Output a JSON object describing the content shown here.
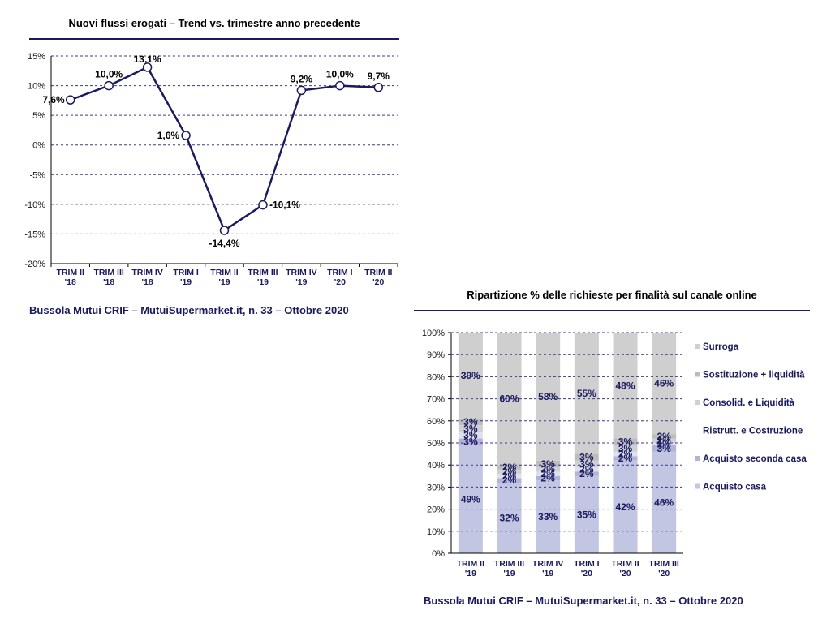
{
  "colors": {
    "navy": "#1a1a5e",
    "grid": "#3a3a8a",
    "acquisto_casa": "#c2c6e2",
    "acquisto_seconda_casa": "#b0b4d8",
    "ristrutt": "#dfe0ec",
    "consolid": "#cfd0d6",
    "sostituzione": "#bdbdbd",
    "surroga": "#cfcfcf"
  },
  "chart_data": [
    {
      "type": "line",
      "title": "Nuovi flussi erogati – Trend vs. trimestre anno precedente",
      "source": "Bussola Mutui CRIF – MutuiSupermarket.it, n. 33 – Ottobre 2020",
      "categories": [
        [
          "TRIM II",
          "'18"
        ],
        [
          "TRIM III",
          "'18"
        ],
        [
          "TRIM IV",
          "'18"
        ],
        [
          "TRIM I",
          "'19"
        ],
        [
          "TRIM II",
          "'19"
        ],
        [
          "TRIM III",
          "'19"
        ],
        [
          "TRIM IV",
          "'19"
        ],
        [
          "TRIM I",
          "'20"
        ],
        [
          "TRIM II",
          "'20"
        ]
      ],
      "values": [
        7.6,
        10.0,
        13.1,
        1.6,
        -14.4,
        -10.1,
        9.2,
        10.0,
        9.7
      ],
      "data_labels": [
        "7,6%",
        "10,0%",
        "13,1%",
        "1,6%",
        "-14,4%",
        "-10,1%",
        "9,2%",
        "10,0%",
        "9,7%"
      ],
      "yticks": [
        15,
        10,
        5,
        0,
        -5,
        -10,
        -15,
        -20
      ],
      "ytick_labels": [
        "15%",
        "10%",
        "5%",
        "0%",
        "-5%",
        "-10%",
        "-15%",
        "-20%"
      ],
      "ylim": [
        -20,
        15
      ],
      "grid": true
    },
    {
      "type": "bar",
      "stacked": true,
      "title": "Ripartizione % delle richieste per finalità sul canale online",
      "source": "Bussola Mutui CRIF – MutuiSupermarket.it, n. 33 – Ottobre 2020",
      "categories": [
        [
          "TRIM II",
          "'19"
        ],
        [
          "TRIM III",
          "'19"
        ],
        [
          "TRIM IV",
          "'19"
        ],
        [
          "TRIM I",
          "'20"
        ],
        [
          "TRIM II",
          "'20"
        ],
        [
          "TRIM III",
          "'20"
        ]
      ],
      "series": [
        {
          "name": "Acquisto casa",
          "values": [
            49,
            32,
            33,
            35,
            42,
            46
          ],
          "labels": [
            "49%",
            "32%",
            "33%",
            "35%",
            "42%",
            "46%"
          ]
        },
        {
          "name": "Acquisto seconda casa",
          "values": [
            3,
            2,
            2,
            2,
            2,
            3
          ],
          "labels": [
            "3%",
            "2%",
            "2%",
            "2%",
            "2%",
            "3%"
          ]
        },
        {
          "name": "Ristrutt. e Costruzione",
          "values": [
            3,
            2,
            2,
            2,
            2,
            1
          ],
          "labels": [
            "3%",
            "2%",
            "2%",
            "2%",
            "2%",
            "1%"
          ]
        },
        {
          "name": "Consolid. e Liquidità",
          "values": [
            3,
            2,
            2,
            3,
            3,
            2
          ],
          "labels": [
            "3%",
            "2%",
            "2%",
            "3%",
            "3%",
            "2%"
          ]
        },
        {
          "name": "Sostituzione + liquidità",
          "values": [
            3,
            2,
            3,
            3,
            3,
            2
          ],
          "labels": [
            "3%",
            "2%",
            "3%",
            "3%",
            "3%",
            "2%"
          ]
        },
        {
          "name": "Surroga",
          "values": [
            39,
            60,
            58,
            55,
            48,
            46
          ],
          "labels": [
            "39%",
            "60%",
            "58%",
            "55%",
            "48%",
            "46%"
          ]
        }
      ],
      "legend_order": [
        "Surroga",
        "Sostituzione + liquidità",
        "Consolid. e Liquidità",
        "Ristrutt. e Costruzione",
        "Acquisto seconda casa",
        "Acquisto casa"
      ],
      "yticks": [
        100,
        90,
        80,
        70,
        60,
        50,
        40,
        30,
        20,
        10,
        0
      ],
      "ytick_labels": [
        "100%",
        "90%",
        "80%",
        "70%",
        "60%",
        "50%",
        "40%",
        "30%",
        "20%",
        "10%",
        "0%"
      ],
      "ylim": [
        0,
        100
      ],
      "legend": "right",
      "grid": true
    }
  ]
}
